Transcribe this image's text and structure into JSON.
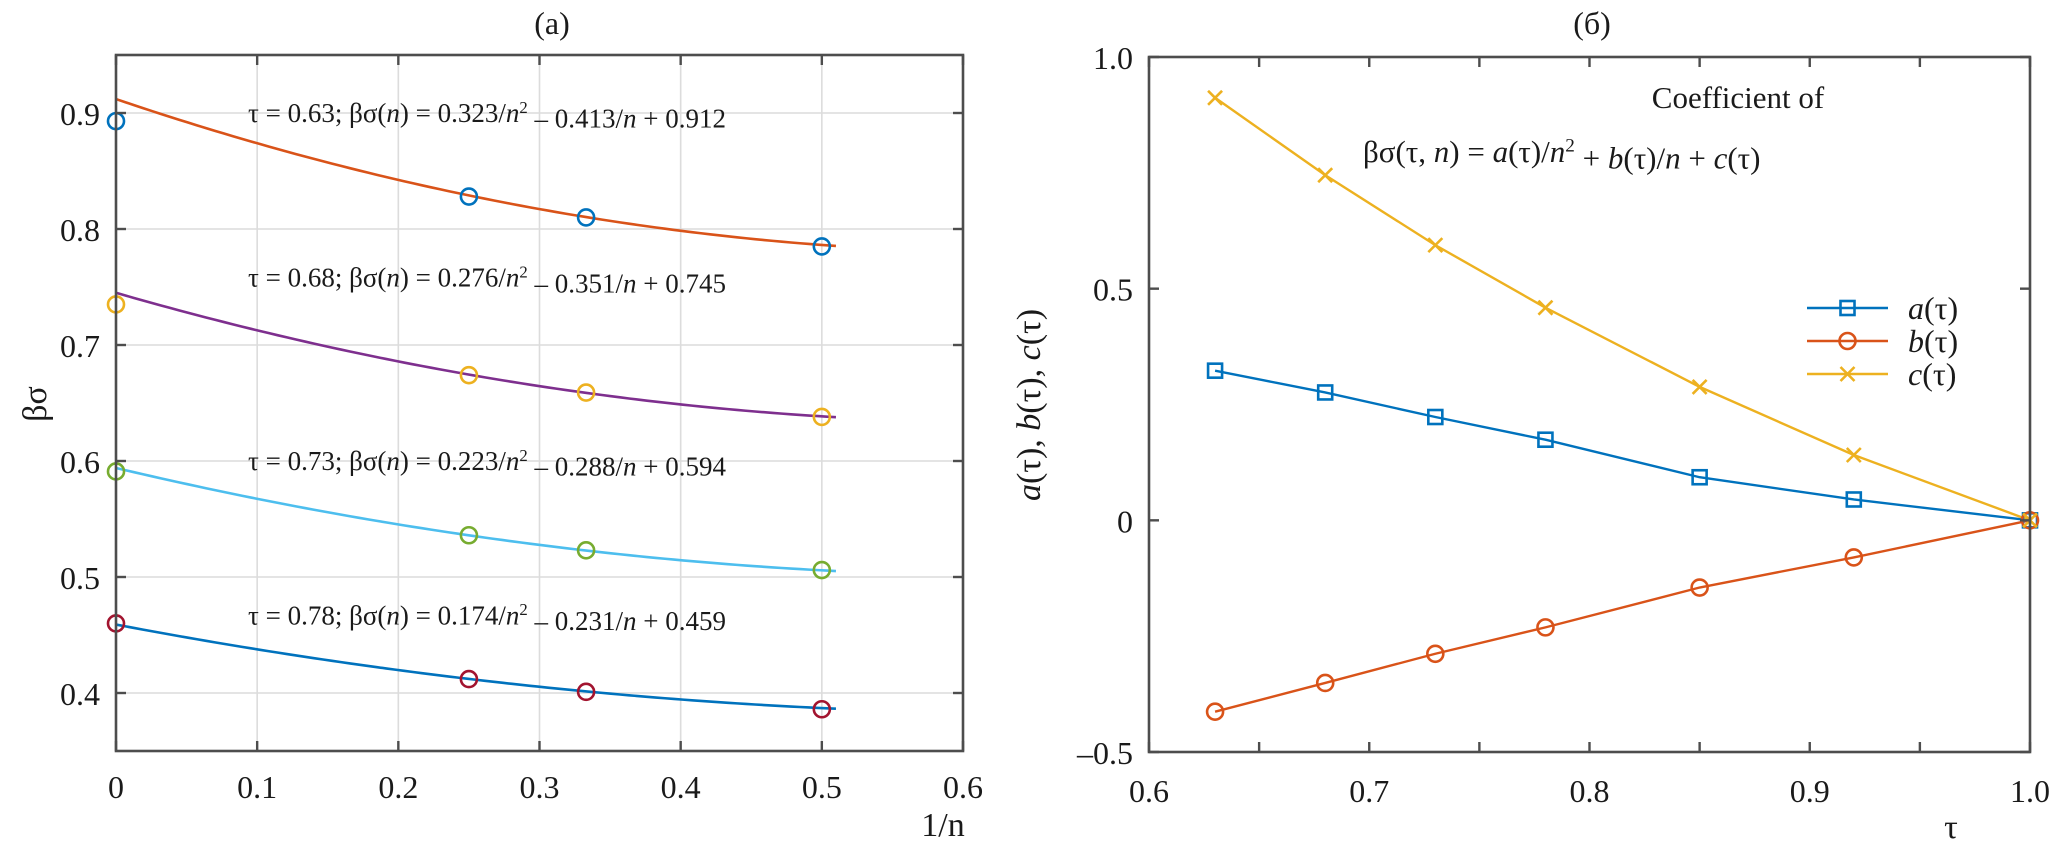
{
  "chart_data": [
    {
      "id": "a",
      "type": "line",
      "title": "(a)",
      "xlabel": "1/n",
      "ylabel": "βσ",
      "xlim": [
        0,
        0.6
      ],
      "ylim": [
        0.35,
        0.95
      ],
      "grid": true,
      "xticks": [
        0,
        0.1,
        0.2,
        0.3,
        0.4,
        0.5,
        0.6
      ],
      "xtick_labels": [
        "0",
        "0.1",
        "0.2",
        "0.3",
        "0.4",
        "0.5",
        "0.6"
      ],
      "yticks": [
        0.4,
        0.5,
        0.6,
        0.7,
        0.8,
        0.9
      ],
      "ytick_labels": [
        "0.4",
        "0.5",
        "0.6",
        "0.7",
        "0.8",
        "0.9"
      ],
      "fit_x_range": [
        0,
        0.51
      ],
      "series": [
        {
          "name": "τ = 0.63",
          "tau": 0.63,
          "fit": {
            "a": 0.323,
            "b": -0.413,
            "c": 0.912
          },
          "fit_color": "#D95319",
          "marker": "circle",
          "marker_color": "#0072BD",
          "points": {
            "x": [
              0,
              0.25,
              0.333,
              0.5
            ],
            "y": [
              0.893,
              0.828,
              0.81,
              0.785
            ]
          },
          "annotation_parts": [
            "τ = 0.63; βσ(",
            "n",
            ") = 0.323/",
            "n",
            "2",
            " – 0.413/",
            "n",
            " + 0.912"
          ],
          "annotation_y": 0.9
        },
        {
          "name": "τ = 0.68",
          "tau": 0.68,
          "fit": {
            "a": 0.276,
            "b": -0.351,
            "c": 0.745
          },
          "fit_color": "#7E2F8E",
          "marker": "circle",
          "marker_color": "#EDB120",
          "points": {
            "x": [
              0,
              0.25,
              0.333,
              0.5
            ],
            "y": [
              0.735,
              0.674,
              0.659,
              0.638
            ]
          },
          "annotation_parts": [
            "τ = 0.68; βσ(",
            "n",
            ") = 0.276/",
            "n",
            "2",
            " – 0.351/",
            "n",
            " + 0.745"
          ],
          "annotation_y": 0.758
        },
        {
          "name": "τ = 0.73",
          "tau": 0.73,
          "fit": {
            "a": 0.223,
            "b": -0.288,
            "c": 0.594
          },
          "fit_color": "#4DBEEE",
          "marker": "circle",
          "marker_color": "#77AC30",
          "points": {
            "x": [
              0,
              0.25,
              0.333,
              0.5
            ],
            "y": [
              0.591,
              0.536,
              0.523,
              0.506
            ]
          },
          "annotation_parts": [
            "τ = 0.73; βσ(",
            "n",
            ") = 0.223/",
            "n",
            "2",
            " – 0.288/",
            "n",
            " + 0.594"
          ],
          "annotation_y": 0.6
        },
        {
          "name": "τ = 0.78",
          "tau": 0.78,
          "fit": {
            "a": 0.174,
            "b": -0.231,
            "c": 0.459
          },
          "fit_color": "#0072BD",
          "marker": "circle",
          "marker_color": "#A2142F",
          "points": {
            "x": [
              0,
              0.25,
              0.333,
              0.5
            ],
            "y": [
              0.46,
              0.412,
              0.401,
              0.386
            ]
          },
          "annotation_parts": [
            "τ = 0.78; βσ(",
            "n",
            ") = 0.174/",
            "n",
            "2",
            " – 0.231/",
            "n",
            " + 0.459"
          ],
          "annotation_y": 0.467
        }
      ]
    },
    {
      "id": "b",
      "type": "line",
      "title": "(б)",
      "xlabel": "τ",
      "ylabel_parts": [
        "a",
        "(τ), ",
        "b",
        "(τ), ",
        "c",
        "(τ)"
      ],
      "xlim": [
        0.6,
        1.0
      ],
      "ylim": [
        -0.5,
        1.0
      ],
      "grid": false,
      "xticks": [
        0.6,
        0.7,
        0.8,
        0.9,
        1.0
      ],
      "xtick_labels": [
        "0.6",
        "0.7",
        "0.8",
        "0.9",
        "1.0"
      ],
      "xminor_ticks": [
        0.65,
        0.75,
        0.85,
        0.95
      ],
      "yticks": [
        -0.5,
        0,
        0.5,
        1.0
      ],
      "ytick_labels": [
        "–0.5",
        "0",
        "0.5",
        "1.0"
      ],
      "annotation_line1": "Coefficient of",
      "annotation_line2_parts": [
        "βσ(τ, ",
        "n",
        ") = ",
        "a",
        "(τ)/",
        "n",
        "2",
        " + ",
        "b",
        "(τ)/",
        "n",
        " + ",
        "c",
        "(τ)"
      ],
      "legend_position": "center-right",
      "x": [
        0.63,
        0.68,
        0.73,
        0.78,
        0.85,
        0.92,
        1.0
      ],
      "series": [
        {
          "name": "a(τ)",
          "label_italic": "a",
          "label_rest": "(τ)",
          "color": "#0072BD",
          "marker": "square",
          "values": [
            0.323,
            0.276,
            0.223,
            0.174,
            0.093,
            0.045,
            0
          ]
        },
        {
          "name": "b(τ)",
          "label_italic": "b",
          "label_rest": "(τ)",
          "color": "#D95319",
          "marker": "circle",
          "values": [
            -0.413,
            -0.351,
            -0.288,
            -0.231,
            -0.145,
            -0.08,
            0
          ]
        },
        {
          "name": "c(τ)",
          "label_italic": "c",
          "label_rest": "(τ)",
          "color": "#EDB120",
          "marker": "x",
          "values": [
            0.912,
            0.745,
            0.594,
            0.459,
            0.288,
            0.141,
            0
          ]
        }
      ]
    }
  ]
}
